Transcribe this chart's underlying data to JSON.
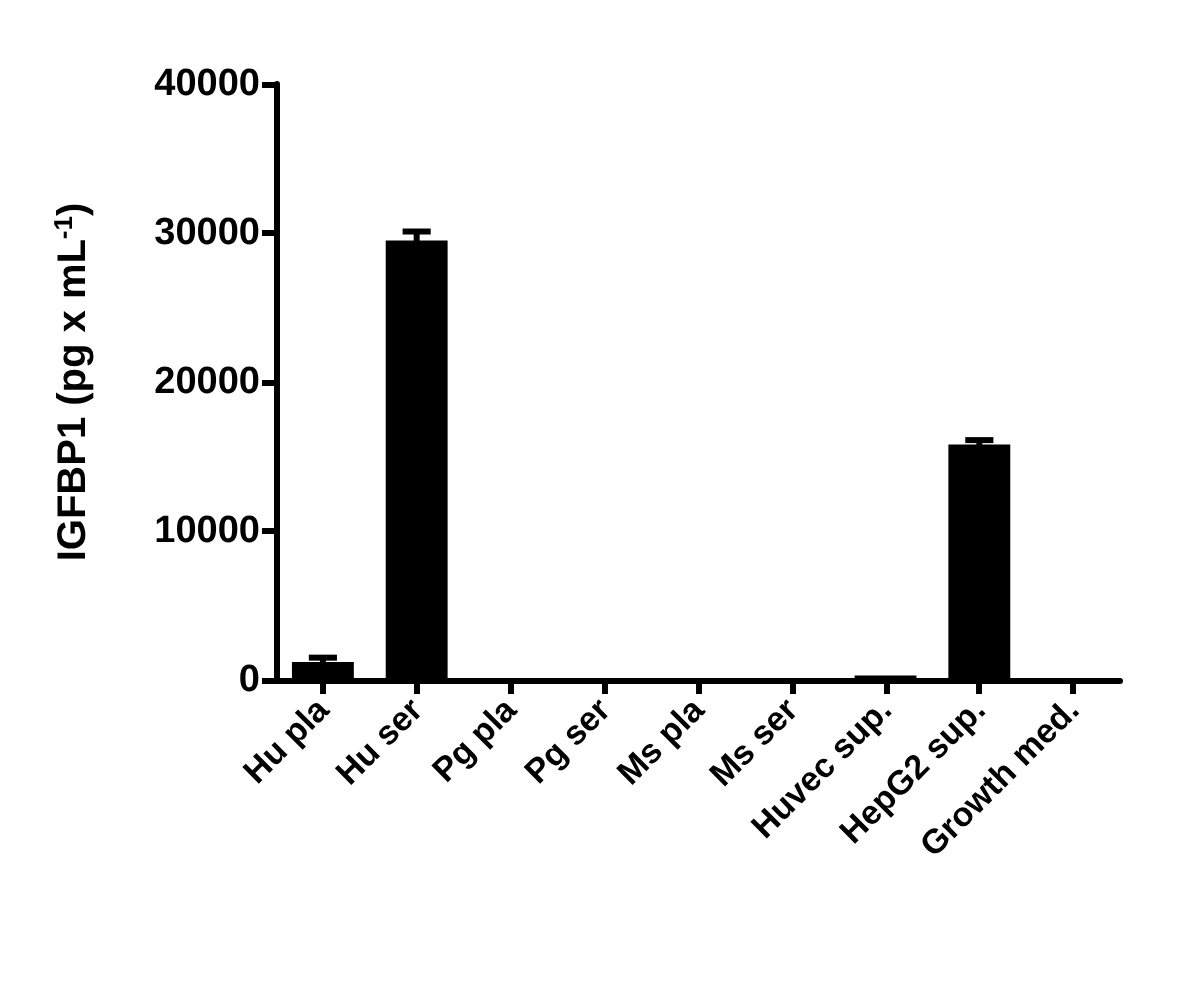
{
  "chart_data": {
    "type": "bar",
    "ylabel": "IGFBP1 (pg x mL$^{-1}$)",
    "categories": [
      "Hu pla",
      "Hu ser",
      "Pg pla",
      "Pg ser",
      "Ms pla",
      "Ms ser",
      "Huvec sup.",
      "HepG2 sup.",
      "Growth med."
    ],
    "values": [
      1200,
      29500,
      0,
      0,
      0,
      0,
      300,
      15800,
      0
    ],
    "errors": [
      300,
      600,
      null,
      null,
      null,
      null,
      null,
      300,
      null
    ],
    "color": "#000000",
    "ylim": [
      0,
      40000
    ],
    "yticks": [
      0,
      10000,
      20000,
      30000,
      40000
    ],
    "grid": false
  }
}
